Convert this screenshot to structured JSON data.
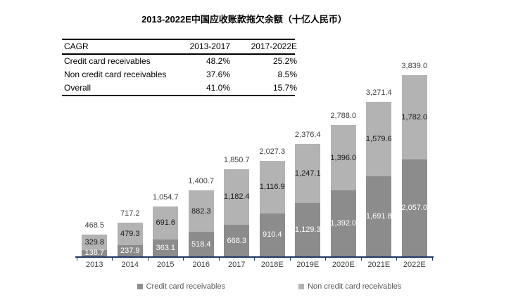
{
  "title": "2013-2022E中国应收账款拖欠余额（十亿人民币）",
  "cagr_table": {
    "headers": [
      "CAGR",
      "2013-2017",
      "2017-2022E"
    ],
    "rows": [
      {
        "label": "Credit card receivables",
        "col1": "48.2%",
        "col2": "25.2%"
      },
      {
        "label": "Non credit card receivables",
        "col1": "37.6%",
        "col2": "8.5%"
      },
      {
        "label": "Overall",
        "col1": "41.0%",
        "col2": "15.7%"
      }
    ]
  },
  "chart_data": {
    "type": "bar",
    "stacked": true,
    "title": "2013-2022E中国应收账款拖欠余额（十亿人民币）",
    "categories": [
      "2013",
      "2014",
      "2015",
      "2016",
      "2017",
      "2018E",
      "2019E",
      "2020E",
      "2021E",
      "2022E"
    ],
    "series": [
      {
        "name": "Credit card receivables",
        "color": "#8C8C8C",
        "label_color": "#FFFFFF",
        "values": [
          138.7,
          237.9,
          363.1,
          518.4,
          668.3,
          910.4,
          1129.3,
          1392.0,
          1691.8,
          2057.0
        ],
        "value_labels": [
          "138.7",
          "237.9",
          "363.1",
          "518.4",
          "668.3",
          "910.4",
          "1,129.3",
          "1,392.0",
          "1,691.8",
          "2,057.0"
        ]
      },
      {
        "name": "Non credit card receivables",
        "color": "#B3B3B3",
        "label_color": "#1A1A1A",
        "values": [
          329.8,
          479.3,
          691.6,
          882.3,
          1182.4,
          1116.9,
          1247.1,
          1396.0,
          1579.6,
          1782.0
        ],
        "value_labels": [
          "329.8",
          "479.3",
          "691.6",
          "882.3",
          "1,182.4",
          "1,116.9",
          "1,247.1",
          "1,396.0",
          "1,579.6",
          "1,782.0"
        ]
      }
    ],
    "totals": [
      468.5,
      717.2,
      1054.7,
      1400.7,
      1850.7,
      2027.3,
      2376.4,
      2788.0,
      3271.4,
      3839.0
    ],
    "total_labels": [
      "468.5",
      "717.2",
      "1,054.7",
      "1,400.7",
      "1,850.7",
      "2,027.3",
      "2,376.4",
      "2,788.0",
      "3,271.4",
      "3,839.0"
    ],
    "xlabel": "",
    "ylabel": "",
    "ylim": [
      0,
      3900
    ],
    "grid": false,
    "axis_color": "#1F3864",
    "legend_position": "bottom"
  }
}
